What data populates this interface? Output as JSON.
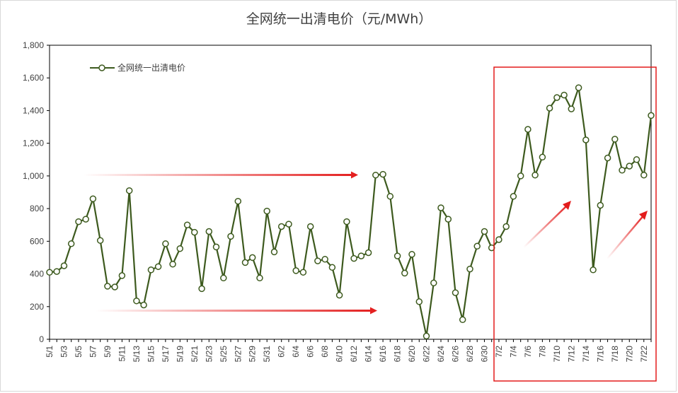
{
  "chart_data": {
    "type": "line",
    "title": "全网统一出清电价（元/MWh）",
    "xlabel": "",
    "ylabel": "",
    "ylim": [
      0,
      1800
    ],
    "yticks": [
      "0",
      "200",
      "400",
      "600",
      "800",
      "1,000",
      "1,200",
      "1,400",
      "1,600",
      "1,800"
    ],
    "xtick_labels": [
      "5/1",
      "5/3",
      "5/5",
      "5/7",
      "5/9",
      "5/11",
      "5/13",
      "5/15",
      "5/17",
      "5/19",
      "5/21",
      "5/23",
      "5/25",
      "5/27",
      "5/29",
      "5/31",
      "6/2",
      "6/4",
      "6/6",
      "6/8",
      "6/10",
      "6/12",
      "6/14",
      "6/16",
      "6/18",
      "6/20",
      "6/22",
      "6/24",
      "6/26",
      "6/28",
      "6/30",
      "7/2",
      "7/4",
      "7/6",
      "7/8",
      "7/10",
      "7/12",
      "7/14",
      "7/16",
      "7/18",
      "7/20",
      "7/22"
    ],
    "legend": "top-left",
    "grid": false,
    "series": [
      {
        "name": "全网统一出清电价",
        "color": "#3d5a1e",
        "marker_fill": "#ffffff",
        "x": [
          "5/1",
          "5/2",
          "5/3",
          "5/4",
          "5/5",
          "5/6",
          "5/7",
          "5/8",
          "5/9",
          "5/10",
          "5/11",
          "5/12",
          "5/13",
          "5/14",
          "5/15",
          "5/16",
          "5/17",
          "5/18",
          "5/19",
          "5/20",
          "5/21",
          "5/22",
          "5/23",
          "5/24",
          "5/25",
          "5/26",
          "5/27",
          "5/28",
          "5/29",
          "5/30",
          "5/31",
          "6/1",
          "6/2",
          "6/3",
          "6/4",
          "6/5",
          "6/6",
          "6/7",
          "6/8",
          "6/9",
          "6/10",
          "6/11",
          "6/12",
          "6/13",
          "6/14",
          "6/15",
          "6/16",
          "6/17",
          "6/18",
          "6/19",
          "6/20",
          "6/21",
          "6/22",
          "6/23",
          "6/24",
          "6/25",
          "6/26",
          "6/27",
          "6/28",
          "6/29",
          "6/30",
          "7/1",
          "7/2",
          "7/3",
          "7/4",
          "7/5",
          "7/6",
          "7/7",
          "7/8",
          "7/9",
          "7/10",
          "7/11",
          "7/12",
          "7/13",
          "7/14",
          "7/15",
          "7/16",
          "7/17",
          "7/18",
          "7/19",
          "7/20",
          "7/21",
          "7/22",
          "7/23"
        ],
        "values": [
          410,
          415,
          450,
          585,
          720,
          735,
          860,
          605,
          325,
          320,
          390,
          910,
          235,
          210,
          425,
          445,
          585,
          460,
          555,
          700,
          655,
          310,
          660,
          565,
          375,
          630,
          845,
          470,
          500,
          375,
          785,
          535,
          690,
          705,
          420,
          410,
          690,
          480,
          490,
          440,
          270,
          720,
          495,
          510,
          530,
          1005,
          1010,
          875,
          510,
          405,
          520,
          230,
          20,
          345,
          805,
          735,
          285,
          120,
          430,
          570,
          660,
          560,
          610,
          690,
          875,
          1000,
          1285,
          1005,
          1115,
          1415,
          1480,
          1495,
          1410,
          1540,
          1220,
          425,
          820,
          1110,
          1225,
          1035,
          1060,
          1100,
          1005,
          1370
        ]
      }
    ],
    "annotations": {
      "highlight_box_color": "#e31c1c",
      "arrow_color": "#e31c1c"
    }
  }
}
